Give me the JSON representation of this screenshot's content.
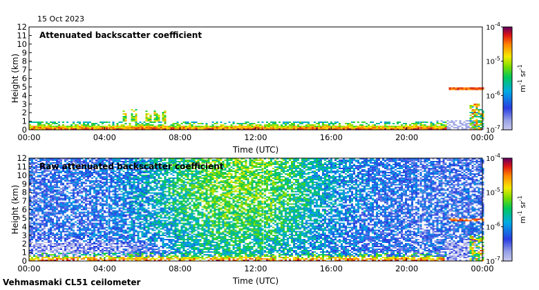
{
  "date_label": "15 Oct 2023",
  "caption": "Vehmasmaki CL51 ceilometer",
  "chart_data": [
    {
      "type": "heatmap",
      "title": "Attenuated backscatter coefficient",
      "xlabel": "Time (UTC)",
      "ylabel": "Height (km)",
      "xlim": [
        0,
        24
      ],
      "ylim": [
        0,
        12
      ],
      "x_ticks": [
        "00:00",
        "04:00",
        "08:00",
        "12:00",
        "16:00",
        "20:00",
        "00:00"
      ],
      "y_ticks": [
        "0",
        "1",
        "2",
        "3",
        "4",
        "5",
        "6",
        "7",
        "8",
        "9",
        "10",
        "11",
        "12"
      ],
      "colorbar": {
        "label_base": "m",
        "label_exp1": "-1",
        "label_mid": " sr",
        "label_exp2": "-1",
        "scale": "log",
        "range": [
          1e-07,
          0.0001
        ],
        "tick_base": "10",
        "tick_exponents": [
          "-4",
          "-5",
          "-6",
          "-7"
        ]
      },
      "features": [
        {
          "name": "boundary layer aerosol",
          "t_start": 0,
          "t_end": 22,
          "height_km": [
            0,
            0.9
          ]
        },
        {
          "name": "convective plumes",
          "t_start": 4.5,
          "t_end": 7.5,
          "height_km": [
            0.5,
            2.5
          ]
        },
        {
          "name": "elevated cloud layer",
          "t_start": 22.2,
          "t_end": 24,
          "height_km": [
            4.5,
            4.9
          ]
        },
        {
          "name": "low cloud / precipitation",
          "t_start": 23.3,
          "t_end": 24,
          "height_km": [
            0,
            3
          ]
        }
      ]
    },
    {
      "type": "heatmap",
      "title": "Raw attenuated backscatter coefficient",
      "xlabel": "Time (UTC)",
      "ylabel": "Height (km)",
      "xlim": [
        0,
        24
      ],
      "ylim": [
        0,
        12
      ],
      "x_ticks": [
        "00:00",
        "04:00",
        "08:00",
        "12:00",
        "16:00",
        "20:00",
        "00:00"
      ],
      "y_ticks": [
        "0",
        "1",
        "2",
        "3",
        "4",
        "5",
        "6",
        "7",
        "8",
        "9",
        "10",
        "11",
        "12"
      ],
      "colorbar": {
        "label_base": "m",
        "label_exp1": "-1",
        "label_mid": " sr",
        "label_exp2": "-1",
        "scale": "log",
        "range": [
          1e-07,
          0.0001
        ],
        "tick_base": "10",
        "tick_exponents": [
          "-4",
          "-5",
          "-6",
          "-7"
        ]
      },
      "features": [
        {
          "name": "background noise (daytime solar)",
          "t_start": 0,
          "t_end": 24,
          "height_km": [
            1,
            12
          ]
        },
        {
          "name": "boundary layer aerosol",
          "t_start": 0,
          "t_end": 22,
          "height_km": [
            0,
            0.9
          ]
        },
        {
          "name": "elevated cloud layer",
          "t_start": 22.2,
          "t_end": 24,
          "height_km": [
            4.5,
            4.9
          ]
        }
      ]
    }
  ]
}
